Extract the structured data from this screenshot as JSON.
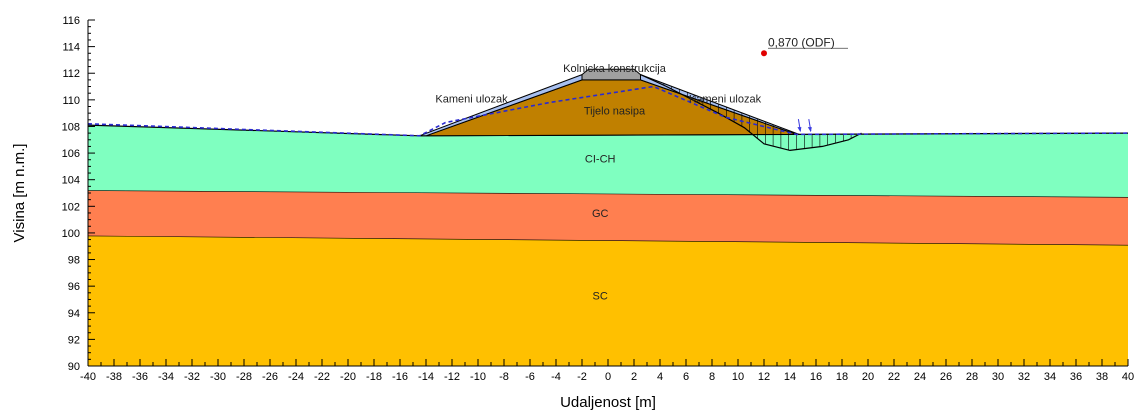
{
  "chart_data": {
    "type": "diagram",
    "xlabel": "Udaljenost [m]",
    "ylabel": "Visina [m n.m.]",
    "xlim": [
      -40,
      40
    ],
    "ylim": [
      90,
      116
    ],
    "x_major_step": 2,
    "y_major_step": 2,
    "x_ticks": [
      "-40",
      "-38",
      "-36",
      "-34",
      "-32",
      "-30",
      "-28",
      "-26",
      "-24",
      "-22",
      "-20",
      "-18",
      "-16",
      "-14",
      "-12",
      "-10",
      "-8",
      "-6",
      "-4",
      "-2",
      "0",
      "2",
      "4",
      "6",
      "8",
      "10",
      "12",
      "14",
      "16",
      "18",
      "20",
      "22",
      "24",
      "26",
      "28",
      "30",
      "32",
      "34",
      "36",
      "38",
      "40"
    ],
    "y_ticks": [
      "90",
      "92",
      "94",
      "96",
      "98",
      "100",
      "102",
      "104",
      "106",
      "108",
      "110",
      "112",
      "114",
      "116"
    ],
    "layers": [
      {
        "name": "SC",
        "color": "#FFC000",
        "top": [
          [
            -40,
            99.8
          ],
          [
            40,
            99.1
          ]
        ],
        "bottom": 90,
        "label_at": [
          -0.6,
          95
        ]
      },
      {
        "name": "GC",
        "color": "#FF7F50",
        "top": [
          [
            -40,
            103.2
          ],
          [
            40,
            102.7
          ]
        ],
        "label_at": [
          -0.6,
          101.2
        ]
      },
      {
        "name": "CI-CH",
        "color": "#7FFFC0",
        "top": [
          [
            -40,
            108.1
          ],
          [
            -14.5,
            107.3
          ],
          [
            40,
            107.5
          ]
        ],
        "label_at": [
          -0.6,
          105.3
        ]
      }
    ],
    "embankment": {
      "body_name": "Tijelo nasipa",
      "body_color": "#C08000",
      "body": [
        [
          -14.0,
          107.3
        ],
        [
          -2.0,
          111.5
        ],
        [
          2.5,
          111.5
        ],
        [
          14.5,
          107.4
        ]
      ],
      "stone_left_name": "Kameni ulozak",
      "stone_right_name": "Kameni ulozak",
      "stone_color": "#A8C0F0",
      "stone_left": [
        [
          -14.5,
          107.3
        ],
        [
          -2.0,
          111.9
        ],
        [
          -2.0,
          111.5
        ],
        [
          -14.0,
          107.3
        ]
      ],
      "stone_right": [
        [
          2.5,
          111.9
        ],
        [
          14.7,
          107.4
        ],
        [
          14.5,
          107.4
        ],
        [
          2.5,
          111.5
        ]
      ],
      "road_name": "Kolnicka konstrukcija",
      "road_color": "#A0A0A0",
      "road": [
        [
          -2.0,
          111.9
        ],
        [
          -1.5,
          112.3
        ],
        [
          2.0,
          112.3
        ],
        [
          2.5,
          111.9
        ],
        [
          2.5,
          111.5
        ],
        [
          -2.0,
          111.5
        ]
      ]
    },
    "water_table": [
      [
        -40,
        108.2
      ],
      [
        -14.5,
        107.3
      ],
      [
        -12.5,
        108.3
      ],
      [
        -4.5,
        109.8
      ],
      [
        3.5,
        111.0
      ],
      [
        9.0,
        108.7
      ],
      [
        14.5,
        107.4
      ],
      [
        40,
        107.5
      ]
    ],
    "slip_surface": [
      [
        2.5,
        111.9
      ],
      [
        4.5,
        111.0
      ],
      [
        8.5,
        109.0
      ],
      [
        10.5,
        107.9
      ],
      [
        12.0,
        106.7
      ],
      [
        14.0,
        106.2
      ],
      [
        16.5,
        106.5
      ],
      [
        18.5,
        107.0
      ],
      [
        19.5,
        107.5
      ]
    ],
    "slip_fill_color": "#7FFFC0",
    "critical_center": {
      "x": 12.0,
      "y": 113.5
    },
    "factor_label": "0,870 (ODF)",
    "load_arrows_x": [
      14.8,
      15.6
    ]
  }
}
